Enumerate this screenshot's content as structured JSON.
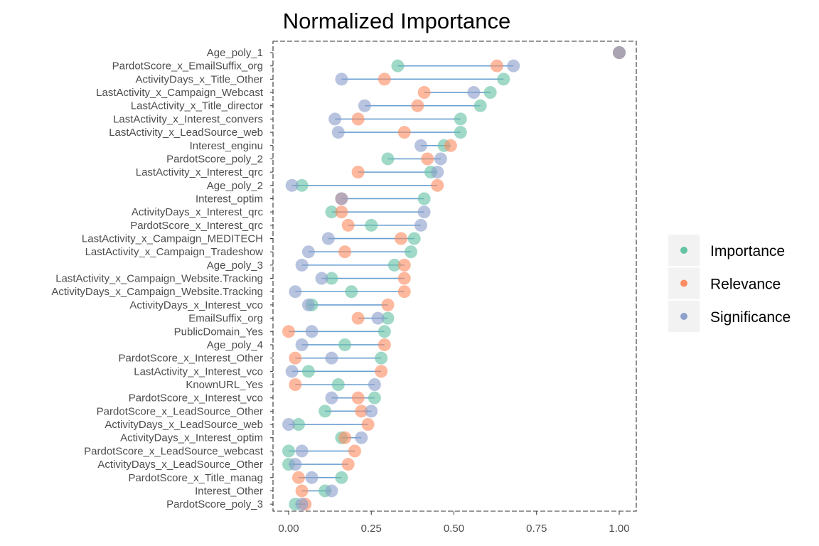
{
  "chart_data": {
    "type": "dot-dumbbell",
    "title": "Normalized Importance",
    "xlabel": "",
    "ylabel": "",
    "xlim": [
      0,
      1
    ],
    "x_ticks": [
      "0.00",
      "0.25",
      "0.50",
      "0.75",
      "1.00"
    ],
    "x_tick_values": [
      0,
      0.25,
      0.5,
      0.75,
      1.0
    ],
    "grid": false,
    "legend_position": "right",
    "colors": {
      "Importance": "#66c2a5",
      "Relevance": "#fc8d62",
      "Significance": "#8da0cb",
      "segment": "#6a9fd0"
    },
    "series": [
      {
        "name": "Importance",
        "key": "imp"
      },
      {
        "name": "Relevance",
        "key": "rel"
      },
      {
        "name": "Significance",
        "key": "sig"
      }
    ],
    "features": [
      {
        "name": "Age_poly_1",
        "imp": 1.0,
        "rel": 1.0,
        "sig": 1.0
      },
      {
        "name": "PardotScore_x_EmailSuffix_org",
        "imp": 0.33,
        "rel": 0.63,
        "sig": 0.68
      },
      {
        "name": "ActivityDays_x_Title_Other",
        "imp": 0.65,
        "rel": 0.29,
        "sig": 0.16
      },
      {
        "name": "LastActivity_x_Campaign_Webcast",
        "imp": 0.61,
        "rel": 0.41,
        "sig": 0.56
      },
      {
        "name": "LastActivity_x_Title_director",
        "imp": 0.58,
        "rel": 0.39,
        "sig": 0.23
      },
      {
        "name": "LastActivity_x_Interest_convers",
        "imp": 0.52,
        "rel": 0.21,
        "sig": 0.14
      },
      {
        "name": "LastActivity_x_LeadSource_web",
        "imp": 0.52,
        "rel": 0.35,
        "sig": 0.15
      },
      {
        "name": "Interest_enginu",
        "imp": 0.47,
        "rel": 0.49,
        "sig": 0.4
      },
      {
        "name": "PardotScore_poly_2",
        "imp": 0.3,
        "rel": 0.42,
        "sig": 0.46
      },
      {
        "name": "LastActivity_x_Interest_qrc",
        "imp": 0.43,
        "rel": 0.21,
        "sig": 0.45
      },
      {
        "name": "Age_poly_2",
        "imp": 0.04,
        "rel": 0.45,
        "sig": 0.01
      },
      {
        "name": "Interest_optim",
        "imp": 0.41,
        "rel": 0.16,
        "sig": 0.16
      },
      {
        "name": "ActivityDays_x_Interest_qrc",
        "imp": 0.13,
        "rel": 0.16,
        "sig": 0.41
      },
      {
        "name": "PardotScore_x_Interest_qrc",
        "imp": 0.25,
        "rel": 0.18,
        "sig": 0.4
      },
      {
        "name": "LastActivity_x_Campaign_MEDITECH",
        "imp": 0.38,
        "rel": 0.34,
        "sig": 0.12
      },
      {
        "name": "LastActivity_x_Campaign_Tradeshow",
        "imp": 0.37,
        "rel": 0.17,
        "sig": 0.06
      },
      {
        "name": "Age_poly_3",
        "imp": 0.32,
        "rel": 0.35,
        "sig": 0.04
      },
      {
        "name": "LastActivity_x_Campaign_Website.Tracking",
        "imp": 0.13,
        "rel": 0.35,
        "sig": 0.1
      },
      {
        "name": "ActivityDays_x_Campaign_Website.Tracking",
        "imp": 0.19,
        "rel": 0.35,
        "sig": 0.02
      },
      {
        "name": "ActivityDays_x_Interest_vco",
        "imp": 0.07,
        "rel": 0.3,
        "sig": 0.06
      },
      {
        "name": "EmailSuffix_org",
        "imp": 0.3,
        "rel": 0.21,
        "sig": 0.27
      },
      {
        "name": "PublicDomain_Yes",
        "imp": 0.29,
        "rel": 0.0,
        "sig": 0.07
      },
      {
        "name": "Age_poly_4",
        "imp": 0.17,
        "rel": 0.29,
        "sig": 0.04
      },
      {
        "name": "PardotScore_x_Interest_Other",
        "imp": 0.28,
        "rel": 0.02,
        "sig": 0.13
      },
      {
        "name": "LastActivity_x_Interest_vco",
        "imp": 0.06,
        "rel": 0.28,
        "sig": 0.01
      },
      {
        "name": "KnownURL_Yes",
        "imp": 0.15,
        "rel": 0.02,
        "sig": 0.26
      },
      {
        "name": "PardotScore_x_Interest_vco",
        "imp": 0.26,
        "rel": 0.21,
        "sig": 0.13
      },
      {
        "name": "PardotScore_x_LeadSource_Other",
        "imp": 0.11,
        "rel": 0.22,
        "sig": 0.25
      },
      {
        "name": "ActivityDays_x_LeadSource_web",
        "imp": 0.03,
        "rel": 0.24,
        "sig": 0.0
      },
      {
        "name": "ActivityDays_x_Interest_optim",
        "imp": 0.16,
        "rel": 0.17,
        "sig": 0.22
      },
      {
        "name": "PardotScore_x_LeadSource_webcast",
        "imp": 0.0,
        "rel": 0.2,
        "sig": 0.04
      },
      {
        "name": "ActivityDays_x_LeadSource_Other",
        "imp": 0.0,
        "rel": 0.18,
        "sig": 0.02
      },
      {
        "name": "PardotScore_x_Title_manag",
        "imp": 0.16,
        "rel": 0.03,
        "sig": 0.07
      },
      {
        "name": "Interest_Other",
        "imp": 0.11,
        "rel": 0.04,
        "sig": 0.13
      },
      {
        "name": "PardotScore_poly_3",
        "imp": 0.02,
        "rel": 0.05,
        "sig": 0.04
      }
    ]
  }
}
